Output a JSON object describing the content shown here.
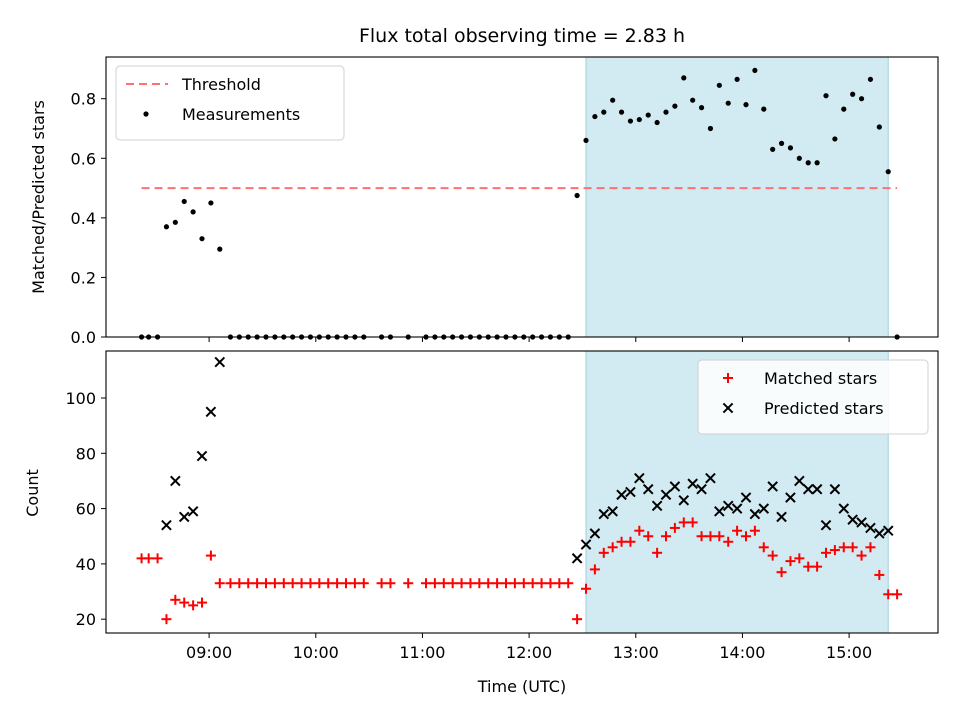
{
  "chart_data": {
    "type": "scatter",
    "title": "Flux total observing time = 2.83 h",
    "xlabel": "Time (UTC)",
    "x_ticks": [
      "09:00",
      "10:00",
      "11:00",
      "12:00",
      "13:00",
      "14:00",
      "15:00"
    ],
    "x_range": [
      "08:02",
      "15:50"
    ],
    "shaded_range": [
      "12:32",
      "15:22"
    ],
    "shade_color": "#add8e6",
    "panels": [
      {
        "ylabel": "Matched/Predicted stars",
        "ylim": [
          0,
          0.94
        ],
        "y_ticks": [
          "0.0",
          "0.2",
          "0.4",
          "0.6",
          "0.8"
        ],
        "legend_position": "upper-left",
        "threshold": {
          "name": "Threshold",
          "value": 0.5,
          "x_start": "08:22",
          "x_end": "15:27",
          "color": "#ff7070"
        },
        "series": [
          {
            "name": "Measurements",
            "marker": "dot",
            "color": "#000000",
            "points": [
              [
                "08:22",
                0
              ],
              [
                "08:26",
                0
              ],
              [
                "08:31",
                0
              ],
              [
                "08:36",
                0.37
              ],
              [
                "08:41",
                0.385
              ],
              [
                "08:46",
                0.455
              ],
              [
                "08:51",
                0.42
              ],
              [
                "08:56",
                0.33
              ],
              [
                "09:01",
                0.45
              ],
              [
                "09:06",
                0.295
              ],
              [
                "09:12",
                0
              ],
              [
                "09:17",
                0
              ],
              [
                "09:22",
                0
              ],
              [
                "09:27",
                0
              ],
              [
                "09:32",
                0
              ],
              [
                "09:37",
                0
              ],
              [
                "09:42",
                0
              ],
              [
                "09:47",
                0
              ],
              [
                "09:52",
                0
              ],
              [
                "09:57",
                0
              ],
              [
                "10:02",
                0
              ],
              [
                "10:07",
                0
              ],
              [
                "10:12",
                0
              ],
              [
                "10:17",
                0
              ],
              [
                "10:22",
                0
              ],
              [
                "10:27",
                0
              ],
              [
                "10:37",
                0
              ],
              [
                "10:42",
                0
              ],
              [
                "10:52",
                0
              ],
              [
                "11:02",
                0
              ],
              [
                "11:07",
                0
              ],
              [
                "11:12",
                0
              ],
              [
                "11:17",
                0
              ],
              [
                "11:22",
                0
              ],
              [
                "11:27",
                0
              ],
              [
                "11:32",
                0
              ],
              [
                "11:37",
                0
              ],
              [
                "11:42",
                0
              ],
              [
                "11:47",
                0
              ],
              [
                "11:52",
                0
              ],
              [
                "11:57",
                0
              ],
              [
                "12:02",
                0
              ],
              [
                "12:07",
                0
              ],
              [
                "12:12",
                0
              ],
              [
                "12:17",
                0
              ],
              [
                "12:22",
                0
              ],
              [
                "12:27",
                0.475
              ],
              [
                "12:32",
                0.66
              ],
              [
                "12:37",
                0.74
              ],
              [
                "12:42",
                0.755
              ],
              [
                "12:47",
                0.795
              ],
              [
                "12:52",
                0.755
              ],
              [
                "12:57",
                0.725
              ],
              [
                "13:02",
                0.73
              ],
              [
                "13:07",
                0.745
              ],
              [
                "13:12",
                0.72
              ],
              [
                "13:17",
                0.755
              ],
              [
                "13:22",
                0.775
              ],
              [
                "13:27",
                0.87
              ],
              [
                "13:32",
                0.795
              ],
              [
                "13:37",
                0.77
              ],
              [
                "13:42",
                0.7
              ],
              [
                "13:47",
                0.845
              ],
              [
                "13:52",
                0.785
              ],
              [
                "13:57",
                0.865
              ],
              [
                "14:02",
                0.78
              ],
              [
                "14:07",
                0.895
              ],
              [
                "14:12",
                0.765
              ],
              [
                "14:17",
                0.63
              ],
              [
                "14:22",
                0.65
              ],
              [
                "14:27",
                0.635
              ],
              [
                "14:32",
                0.6
              ],
              [
                "14:37",
                0.585
              ],
              [
                "14:42",
                0.585
              ],
              [
                "14:47",
                0.81
              ],
              [
                "14:52",
                0.665
              ],
              [
                "14:57",
                0.765
              ],
              [
                "15:02",
                0.815
              ],
              [
                "15:07",
                0.8
              ],
              [
                "15:12",
                0.865
              ],
              [
                "15:17",
                0.705
              ],
              [
                "15:22",
                0.555
              ],
              [
                "15:27",
                0
              ]
            ]
          }
        ]
      },
      {
        "ylabel": "Count",
        "ylim": [
          15,
          117
        ],
        "y_ticks": [
          "20",
          "40",
          "60",
          "80",
          "100"
        ],
        "legend_position": "upper-right",
        "series": [
          {
            "name": "Matched stars",
            "marker": "plus",
            "color": "#ff0000",
            "points": [
              [
                "08:22",
                42
              ],
              [
                "08:26",
                42
              ],
              [
                "08:31",
                42
              ],
              [
                "08:36",
                20
              ],
              [
                "08:41",
                27
              ],
              [
                "08:46",
                26
              ],
              [
                "08:51",
                25
              ],
              [
                "08:56",
                26
              ],
              [
                "09:01",
                43
              ],
              [
                "09:06",
                33
              ],
              [
                "09:12",
                33
              ],
              [
                "09:17",
                33
              ],
              [
                "09:22",
                33
              ],
              [
                "09:27",
                33
              ],
              [
                "09:32",
                33
              ],
              [
                "09:37",
                33
              ],
              [
                "09:42",
                33
              ],
              [
                "09:47",
                33
              ],
              [
                "09:52",
                33
              ],
              [
                "09:57",
                33
              ],
              [
                "10:02",
                33
              ],
              [
                "10:07",
                33
              ],
              [
                "10:12",
                33
              ],
              [
                "10:17",
                33
              ],
              [
                "10:22",
                33
              ],
              [
                "10:27",
                33
              ],
              [
                "10:37",
                33
              ],
              [
                "10:42",
                33
              ],
              [
                "10:52",
                33
              ],
              [
                "11:02",
                33
              ],
              [
                "11:07",
                33
              ],
              [
                "11:12",
                33
              ],
              [
                "11:17",
                33
              ],
              [
                "11:22",
                33
              ],
              [
                "11:27",
                33
              ],
              [
                "11:32",
                33
              ],
              [
                "11:37",
                33
              ],
              [
                "11:42",
                33
              ],
              [
                "11:47",
                33
              ],
              [
                "11:52",
                33
              ],
              [
                "11:57",
                33
              ],
              [
                "12:02",
                33
              ],
              [
                "12:07",
                33
              ],
              [
                "12:12",
                33
              ],
              [
                "12:17",
                33
              ],
              [
                "12:22",
                33
              ],
              [
                "12:27",
                20
              ],
              [
                "12:32",
                31
              ],
              [
                "12:37",
                38
              ],
              [
                "12:42",
                44
              ],
              [
                "12:47",
                46
              ],
              [
                "12:52",
                48
              ],
              [
                "12:57",
                48
              ],
              [
                "13:02",
                52
              ],
              [
                "13:07",
                50
              ],
              [
                "13:12",
                44
              ],
              [
                "13:17",
                50
              ],
              [
                "13:22",
                53
              ],
              [
                "13:27",
                55
              ],
              [
                "13:32",
                55
              ],
              [
                "13:37",
                50
              ],
              [
                "13:42",
                50
              ],
              [
                "13:47",
                50
              ],
              [
                "13:52",
                48
              ],
              [
                "13:57",
                52
              ],
              [
                "14:02",
                50
              ],
              [
                "14:07",
                52
              ],
              [
                "14:12",
                46
              ],
              [
                "14:17",
                43
              ],
              [
                "14:22",
                37
              ],
              [
                "14:27",
                41
              ],
              [
                "14:32",
                42
              ],
              [
                "14:37",
                39
              ],
              [
                "14:42",
                39
              ],
              [
                "14:47",
                44
              ],
              [
                "14:52",
                45
              ],
              [
                "14:57",
                46
              ],
              [
                "15:02",
                46
              ],
              [
                "15:07",
                43
              ],
              [
                "15:12",
                46
              ],
              [
                "15:17",
                36
              ],
              [
                "15:22",
                29
              ],
              [
                "15:27",
                29
              ]
            ]
          },
          {
            "name": "Predicted stars",
            "marker": "x",
            "color": "#000000",
            "points": [
              [
                "08:36",
                54
              ],
              [
                "08:41",
                70
              ],
              [
                "08:46",
                57
              ],
              [
                "08:51",
                59
              ],
              [
                "08:56",
                79
              ],
              [
                "09:01",
                95
              ],
              [
                "09:06",
                113
              ],
              [
                "12:27",
                42
              ],
              [
                "12:32",
                47
              ],
              [
                "12:37",
                51
              ],
              [
                "12:42",
                58
              ],
              [
                "12:47",
                59
              ],
              [
                "12:52",
                65
              ],
              [
                "12:57",
                66
              ],
              [
                "13:02",
                71
              ],
              [
                "13:07",
                67
              ],
              [
                "13:12",
                61
              ],
              [
                "13:17",
                65
              ],
              [
                "13:22",
                68
              ],
              [
                "13:27",
                63
              ],
              [
                "13:32",
                69
              ],
              [
                "13:37",
                67
              ],
              [
                "13:42",
                71
              ],
              [
                "13:47",
                59
              ],
              [
                "13:52",
                61
              ],
              [
                "13:57",
                60
              ],
              [
                "14:02",
                64
              ],
              [
                "14:07",
                58
              ],
              [
                "14:12",
                60
              ],
              [
                "14:17",
                68
              ],
              [
                "14:22",
                57
              ],
              [
                "14:27",
                64
              ],
              [
                "14:32",
                70
              ],
              [
                "14:37",
                67
              ],
              [
                "14:42",
                67
              ],
              [
                "14:47",
                54
              ],
              [
                "14:52",
                67
              ],
              [
                "14:57",
                60
              ],
              [
                "15:02",
                56
              ],
              [
                "15:07",
                55
              ],
              [
                "15:12",
                53
              ],
              [
                "15:17",
                51
              ],
              [
                "15:22",
                52
              ]
            ]
          }
        ]
      }
    ]
  }
}
